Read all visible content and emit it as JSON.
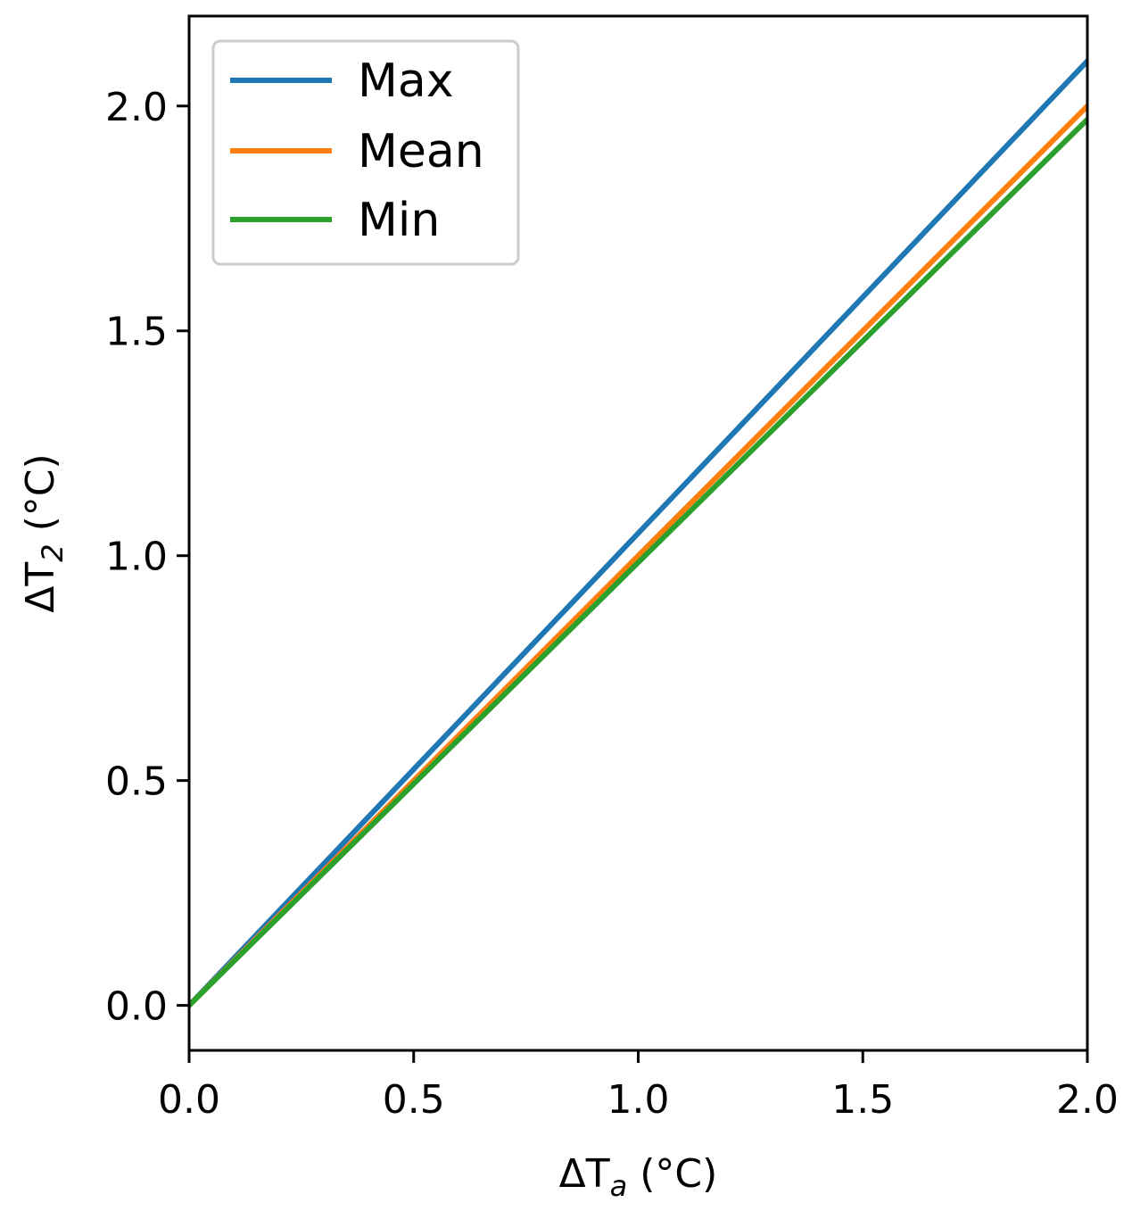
{
  "chart_data": {
    "type": "line",
    "xlabel": {
      "base": "ΔT",
      "sub": "a",
      "unit": " (°C)"
    },
    "ylabel": {
      "base": "ΔT",
      "sub": "2",
      "unit": " (°C)"
    },
    "xlim": [
      0.0,
      2.0
    ],
    "ylim": [
      -0.1,
      2.2
    ],
    "xticks": [
      0.0,
      0.5,
      1.0,
      1.5,
      2.0
    ],
    "xtick_labels": [
      "0.0",
      "0.5",
      "1.0",
      "1.5",
      "2.0"
    ],
    "yticks": [
      0.0,
      0.5,
      1.0,
      1.5,
      2.0
    ],
    "ytick_labels": [
      "0.0",
      "0.5",
      "1.0",
      "1.5",
      "2.0"
    ],
    "grid": false,
    "legend_position": "top-left",
    "series": [
      {
        "name": "Max",
        "color": "#1f77b4",
        "x": [
          0.0,
          2.0
        ],
        "y": [
          0.0,
          2.1
        ]
      },
      {
        "name": "Mean",
        "color": "#ff7f0e",
        "x": [
          0.0,
          2.0
        ],
        "y": [
          0.0,
          2.0
        ]
      },
      {
        "name": "Min",
        "color": "#2ca02c",
        "x": [
          0.0,
          2.0
        ],
        "y": [
          0.0,
          1.97
        ]
      }
    ]
  }
}
